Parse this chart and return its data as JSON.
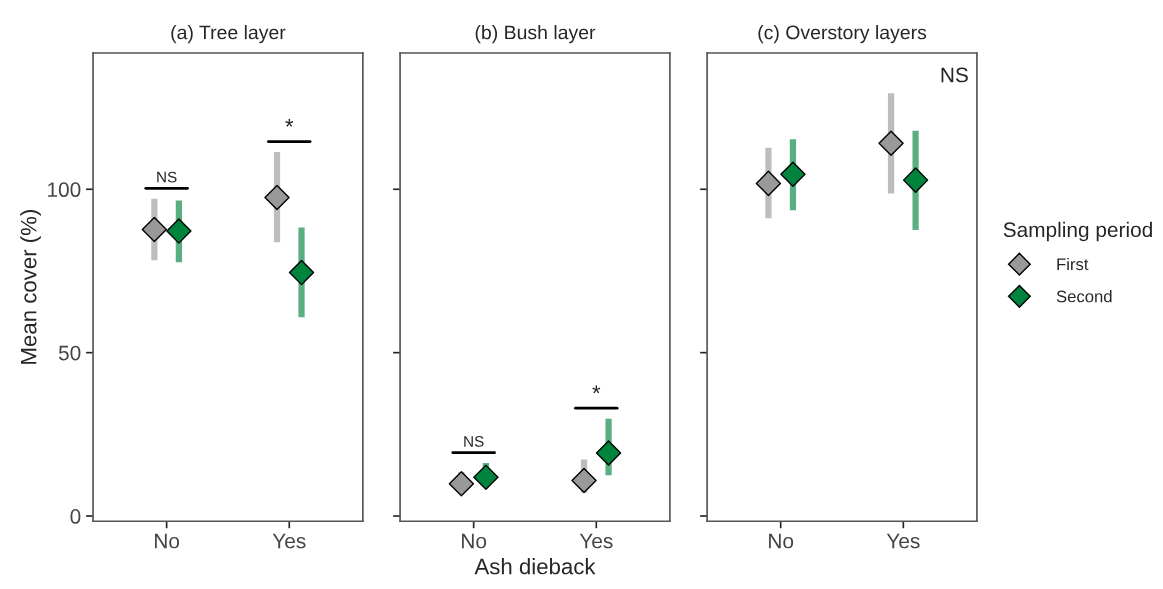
{
  "chart_data": [
    {
      "type": "scatter",
      "title": "(a) Tree layer",
      "ylabel": "Mean cover (%)",
      "categories": [
        "No",
        "Yes"
      ],
      "marker": "diamond",
      "ylim": [
        -1.6,
        141.7
      ],
      "yticks": [
        0,
        50,
        100
      ],
      "grid": false,
      "series": [
        {
          "color": "#999999",
          "values": [
            87.7,
            97.5
          ],
          "errors": [
            [
              78.3,
              97.1
            ],
            [
              83.8,
              111.4
            ]
          ]
        },
        {
          "color": "#00843d",
          "values": [
            87.2,
            74.5
          ],
          "errors": [
            [
              77.7,
              96.6
            ],
            [
              60.8,
              88.3
            ]
          ]
        }
      ],
      "annotations": [
        "NS",
        "*"
      ]
    },
    {
      "type": "scatter",
      "title": "(b) Bush layer",
      "xlabel": "Ash dieback",
      "categories": [
        "No",
        "Yes"
      ],
      "marker": "diamond",
      "ylim": [
        -1.6,
        141.7
      ],
      "yticks": [
        0,
        50,
        100
      ],
      "grid": false,
      "tick_labels": "x",
      "series": [
        {
          "color": "#999999",
          "values": [
            9.9,
            10.9
          ],
          "errors": [
            [
              7.4,
              13.5
            ],
            [
              7.2,
              17.3
            ]
          ]
        },
        {
          "color": "#00843d",
          "values": [
            11.9,
            19.3
          ],
          "errors": [
            [
              8.9,
              16.2
            ],
            [
              12.5,
              29.8
            ]
          ]
        }
      ],
      "annotations": [
        "NS",
        "*"
      ]
    },
    {
      "type": "scatter",
      "title": "(c) Overstory layers",
      "categories": [
        "No",
        "Yes"
      ],
      "marker": "diamond",
      "ylim": [
        -1.6,
        141.7
      ],
      "yticks": [
        0,
        50,
        100
      ],
      "grid": false,
      "tick_labels": "x",
      "legend": "right",
      "legend_title": "Sampling period",
      "series": [
        {
          "name": "First",
          "color": "#999999",
          "values": [
            101.8,
            114.1
          ],
          "errors": [
            [
              91.1,
              112.7
            ],
            [
              98.7,
              129.4
            ]
          ]
        },
        {
          "name": "Second",
          "color": "#00843d",
          "values": [
            104.6,
            102.8
          ],
          "errors": [
            [
              93.6,
              115.3
            ],
            [
              87.5,
              117.9
            ]
          ]
        }
      ],
      "annotations": [
        "NS"
      ]
    }
  ]
}
